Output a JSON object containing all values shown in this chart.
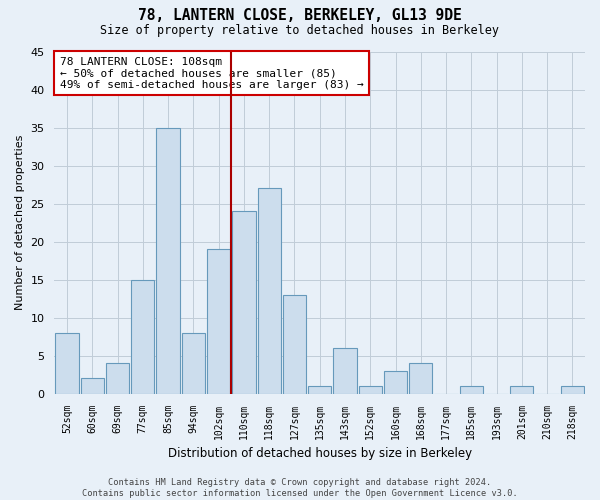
{
  "title1": "78, LANTERN CLOSE, BERKELEY, GL13 9DE",
  "title2": "Size of property relative to detached houses in Berkeley",
  "xlabel": "Distribution of detached houses by size in Berkeley",
  "ylabel": "Number of detached properties",
  "categories": [
    "52sqm",
    "60sqm",
    "69sqm",
    "77sqm",
    "85sqm",
    "94sqm",
    "102sqm",
    "110sqm",
    "118sqm",
    "127sqm",
    "135sqm",
    "143sqm",
    "152sqm",
    "160sqm",
    "168sqm",
    "177sqm",
    "185sqm",
    "193sqm",
    "201sqm",
    "210sqm",
    "218sqm"
  ],
  "values": [
    8,
    2,
    4,
    15,
    35,
    8,
    19,
    24,
    27,
    13,
    1,
    6,
    1,
    3,
    4,
    0,
    1,
    0,
    1,
    0,
    1
  ],
  "bar_color": "#ccdded",
  "bar_edge_color": "#6699bb",
  "vline_color": "#aa0000",
  "annotation_text": "78 LANTERN CLOSE: 108sqm\n← 50% of detached houses are smaller (85)\n49% of semi-detached houses are larger (83) →",
  "annotation_box_color": "white",
  "annotation_box_edge": "#cc0000",
  "ylim": [
    0,
    45
  ],
  "yticks": [
    0,
    5,
    10,
    15,
    20,
    25,
    30,
    35,
    40,
    45
  ],
  "footer": "Contains HM Land Registry data © Crown copyright and database right 2024.\nContains public sector information licensed under the Open Government Licence v3.0.",
  "bg_color": "#e8f0f8",
  "grid_color": "#c0ccd8"
}
